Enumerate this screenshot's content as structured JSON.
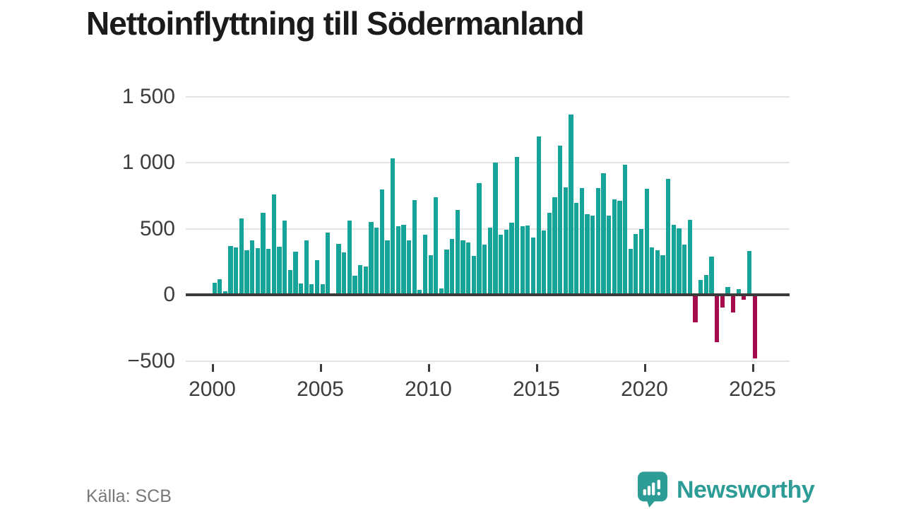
{
  "title": "Nettoinflyttning till Södermanland",
  "source": "Källa: SCB",
  "brand": {
    "name": "Newsworthy"
  },
  "colors": {
    "positive": "#16a39a",
    "negative": "#a50b4c",
    "axis": "#3b3b3b",
    "grid": "#e4e4e4",
    "text": "#3d3d3d",
    "title": "#1b1b1b",
    "muted": "#787878",
    "brand": "#2d9c96"
  },
  "chart_data": {
    "type": "bar",
    "title": "Nettoinflyttning till Södermanland",
    "x_start": "2000 Q1",
    "x_end": "2025 Q1",
    "x_frequency": "quarterly",
    "x_tick_labels": [
      "2000",
      "2005",
      "2010",
      "2015",
      "2020",
      "2025"
    ],
    "y_ticks": [
      1500,
      1000,
      500,
      0,
      -500
    ],
    "y_tick_labels": [
      "1 500",
      "1 000",
      "500",
      "0",
      "−500"
    ],
    "ylim": [
      -560,
      1560
    ],
    "grid": true,
    "legend": false,
    "values": [
      90,
      120,
      25,
      370,
      360,
      580,
      335,
      410,
      355,
      620,
      350,
      760,
      365,
      560,
      185,
      325,
      85,
      410,
      80,
      260,
      80,
      470,
      5,
      385,
      320,
      560,
      145,
      225,
      215,
      550,
      510,
      795,
      410,
      1030,
      520,
      530,
      410,
      715,
      40,
      455,
      300,
      740,
      50,
      340,
      425,
      640,
      410,
      395,
      295,
      845,
      380,
      510,
      1000,
      455,
      490,
      545,
      1045,
      520,
      525,
      435,
      1200,
      485,
      620,
      740,
      1130,
      815,
      1365,
      695,
      810,
      610,
      600,
      810,
      920,
      600,
      720,
      710,
      985,
      345,
      460,
      500,
      800,
      360,
      335,
      300,
      875,
      530,
      505,
      380,
      565,
      -210,
      110,
      150,
      290,
      -360,
      -95,
      60,
      -135,
      45,
      -40,
      330,
      -480
    ]
  }
}
